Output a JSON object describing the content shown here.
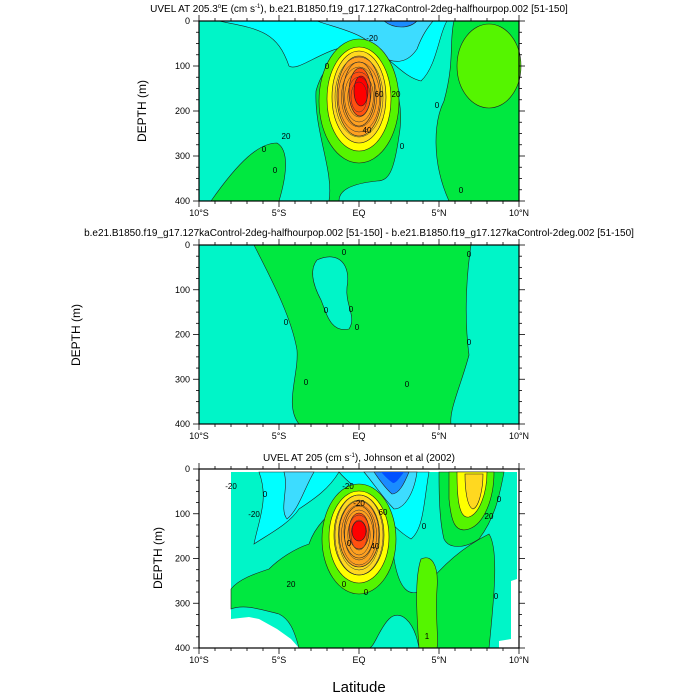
{
  "colors": {
    "mint": "#00f5c8",
    "cyan": "#00ffff",
    "light_blue": "#3ddcff",
    "blue": "#1a8cff",
    "deep_blue": "#0050ff",
    "green": "#00e840",
    "lime": "#55f500",
    "yellow": "#ffff00",
    "gold": "#ffd820",
    "orange": "#ffa020",
    "red_orange": "#ff5010",
    "red": "#ff0000"
  },
  "chart_data": [
    {
      "type": "heatmap",
      "title": "UVEL AT 205.3°E (cm s-1), b.e21.B1850.f19_g17.127kaControl-2deg-halfhourpop.002 [51-150]",
      "title_parts": {
        "pre": "UVEL AT 205.3",
        "deg": "o",
        "mid": "E (cm s",
        "sup": "-1",
        "post": "), b.e21.B1850.f19_g17.127kaControl-2deg-halfhourpop.002 [51-150]"
      },
      "xlabel": "",
      "ylabel": "DEPTH (m)",
      "xlim": [
        -10,
        10
      ],
      "ylim": [
        400,
        0
      ],
      "xticks": [
        "10°S",
        "5°S",
        "EQ",
        "5°N",
        "10°N"
      ],
      "yticks": [
        "0",
        "100",
        "200",
        "300",
        "400"
      ],
      "contour_labels": [
        "-20",
        "0",
        "20",
        "60",
        "20",
        "40",
        "0",
        "0",
        "0",
        "0",
        "0"
      ],
      "max_value_approx": 70
    },
    {
      "type": "heatmap",
      "title": "b.e21.B1850.f19_g17.127kaControl-2deg-halfhourpop.002 [51-150] - b.e21.B1850.f19_g17.127kaControl-2deg.002 [51-150]",
      "xlabel": "",
      "ylabel": "DEPTH (m)",
      "xlim": [
        -10,
        10
      ],
      "ylim": [
        400,
        0
      ],
      "xticks": [
        "10°S",
        "5°S",
        "EQ",
        "5°N",
        "10°N"
      ],
      "yticks": [
        "0",
        "100",
        "200",
        "300",
        "400"
      ],
      "contour_labels": [
        "0",
        "0",
        "0",
        "0",
        "0",
        "0",
        "0",
        "0",
        "0"
      ]
    },
    {
      "type": "heatmap",
      "title": "UVEL AT 205 (cm s-1), Johnson et al (2002)",
      "title_parts": {
        "pre": "UVEL AT 205 (cm s",
        "sup": "-1",
        "post": "), Johnson et al (2002)"
      },
      "xlabel": "Latitude",
      "ylabel": "DEPTH (m)",
      "xlim": [
        -10,
        10
      ],
      "ylim": [
        400,
        0
      ],
      "xticks": [
        "10°S",
        "5°S",
        "EQ",
        "5°N",
        "10°N"
      ],
      "yticks": [
        "0",
        "100",
        "200",
        "300",
        "400"
      ],
      "contour_labels": [
        "-20",
        "-20",
        "0",
        "-20",
        "-20",
        "60",
        "40",
        "20",
        "0",
        "0",
        "20",
        "0",
        "0",
        "0",
        "0",
        "1"
      ],
      "max_value_approx": 80
    }
  ]
}
